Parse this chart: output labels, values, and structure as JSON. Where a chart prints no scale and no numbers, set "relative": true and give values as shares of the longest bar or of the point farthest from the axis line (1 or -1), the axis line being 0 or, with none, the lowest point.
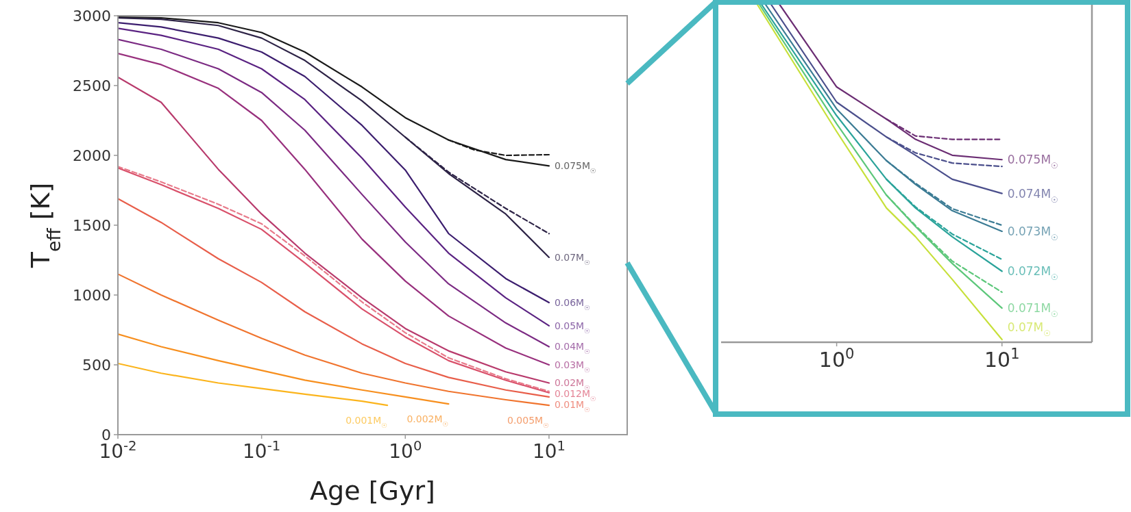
{
  "chart_data": [
    {
      "type": "line",
      "xlabel": "Age [Gyr]",
      "ylabel": "T$_{eff}$ [K]",
      "log": "x",
      "xlim": [
        0.01,
        35
      ],
      "ylim": [
        0,
        3000
      ],
      "xticks": [
        {
          "value": 0.01,
          "label": "10$^{-2}$"
        },
        {
          "value": 0.1,
          "label": "10$^{-1}$"
        },
        {
          "value": 1,
          "label": "10$^{0}$"
        },
        {
          "value": 10,
          "label": "10$^{1}$"
        }
      ],
      "yticks": [
        0,
        500,
        1000,
        1500,
        2000,
        2500,
        3000
      ],
      "series": [
        {
          "name": "0.075M$_{☉}$",
          "color": "#1a1a1a",
          "x": [
            0.01,
            0.02,
            0.05,
            0.1,
            0.2,
            0.5,
            1,
            2,
            5,
            10
          ],
          "values": [
            2990,
            2985,
            2950,
            2880,
            2740,
            2490,
            2270,
            2110,
            1970,
            1925
          ]
        },
        {
          "color": "#1a1a1a",
          "line_style": "dashed",
          "x": [
            2,
            3,
            5,
            10
          ],
          "values": [
            2110,
            2040,
            2000,
            2005
          ]
        },
        {
          "name": "0.07M$_{☉}$",
          "color": "#2d2346",
          "x": [
            0.01,
            0.02,
            0.05,
            0.1,
            0.2,
            0.5,
            1,
            2,
            5,
            10
          ],
          "values": [
            2985,
            2975,
            2930,
            2840,
            2680,
            2390,
            2130,
            1870,
            1580,
            1270
          ]
        },
        {
          "color": "#2d2346",
          "line_style": "dashed",
          "x": [
            1,
            2,
            5,
            10
          ],
          "values": [
            2130,
            1880,
            1620,
            1440
          ]
        },
        {
          "name": "0.06M$_{☉}$",
          "color": "#3b1d6e",
          "x": [
            0.01,
            0.02,
            0.05,
            0.1,
            0.2,
            0.5,
            1,
            2,
            5,
            10
          ],
          "values": [
            2950,
            2920,
            2840,
            2740,
            2565,
            2215,
            1895,
            1440,
            1118,
            946
          ]
        },
        {
          "name": "0.05M$_{☉}$",
          "color": "#5a2282",
          "x": [
            0.01,
            0.02,
            0.05,
            0.1,
            0.2,
            0.5,
            1,
            2,
            5,
            10
          ],
          "values": [
            2910,
            2860,
            2760,
            2620,
            2400,
            1980,
            1630,
            1300,
            980,
            780
          ]
        },
        {
          "name": "0.04M$_{☉}$",
          "color": "#7b2a83",
          "x": [
            0.01,
            0.02,
            0.05,
            0.1,
            0.2,
            0.5,
            1,
            2,
            5,
            10
          ],
          "values": [
            2830,
            2760,
            2620,
            2450,
            2180,
            1720,
            1380,
            1080,
            800,
            630
          ]
        },
        {
          "name": "0.03M$_{☉}$",
          "color": "#98307d",
          "x": [
            0.01,
            0.02,
            0.05,
            0.1,
            0.2,
            0.5,
            1,
            2,
            5,
            10
          ],
          "values": [
            2730,
            2650,
            2480,
            2250,
            1900,
            1400,
            1100,
            850,
            620,
            500
          ]
        },
        {
          "name": "0.02M$_{☉}$",
          "color": "#b83a6c",
          "x": [
            0.01,
            0.02,
            0.05,
            0.1,
            0.2,
            0.5,
            1,
            2,
            5,
            10
          ],
          "values": [
            2560,
            2380,
            1900,
            1580,
            1300,
            980,
            760,
            600,
            450,
            370
          ]
        },
        {
          "name": "0.012M$_{☉}$",
          "color": "#d9506a",
          "x": [
            0.01,
            0.02,
            0.05,
            0.1,
            0.2,
            0.5,
            1,
            2,
            5,
            10
          ],
          "values": [
            1910,
            1790,
            1620,
            1470,
            1230,
            900,
            700,
            530,
            390,
            300
          ]
        },
        {
          "color": "#e87a8a",
          "line_style": "dashed",
          "x": [
            0.01,
            0.02,
            0.05,
            0.1,
            0.2,
            0.5,
            1,
            2,
            5,
            10
          ],
          "values": [
            1920,
            1810,
            1650,
            1510,
            1280,
            950,
            730,
            550,
            400,
            310
          ]
        },
        {
          "name": "0.01M$_{☉}$",
          "color": "#e85e4a",
          "x": [
            0.01,
            0.02,
            0.05,
            0.1,
            0.2,
            0.5,
            1,
            2,
            5,
            10
          ],
          "values": [
            1690,
            1520,
            1260,
            1090,
            880,
            650,
            510,
            410,
            320,
            270
          ]
        },
        {
          "name": "0.005M$_{☉}$",
          "color": "#f0742e",
          "x": [
            0.01,
            0.02,
            0.05,
            0.1,
            0.2,
            0.5,
            1,
            2,
            5,
            10
          ],
          "values": [
            1150,
            1000,
            820,
            690,
            570,
            440,
            370,
            310,
            250,
            210
          ]
        },
        {
          "name": "0.002M$_{☉}$",
          "color": "#f78f1e",
          "x": [
            0.01,
            0.02,
            0.05,
            0.1,
            0.2,
            0.5,
            1,
            2
          ],
          "values": [
            720,
            630,
            530,
            460,
            390,
            320,
            270,
            220
          ]
        },
        {
          "name": "0.001M$_{☉}$",
          "color": "#fbb41c",
          "x": [
            0.01,
            0.02,
            0.05,
            0.1,
            0.2,
            0.5,
            0.75
          ],
          "values": [
            510,
            440,
            370,
            330,
            290,
            240,
            210
          ]
        }
      ]
    },
    {
      "type": "line",
      "relative": true,
      "log": "x",
      "tick_labels": "x",
      "xlim": [
        0.2,
        35
      ],
      "xticks": [
        {
          "value": 1,
          "label": "10$^{0}$"
        },
        {
          "value": 10,
          "label": "10$^{1}$"
        }
      ],
      "series": [
        {
          "name": "0.075M$_{☉}$",
          "color": "#6b2d73",
          "x": [
            0.45,
            1,
            2,
            3,
            5,
            10
          ],
          "values": [
            1,
            0.755,
            0.66,
            0.6,
            0.553,
            0.54
          ]
        },
        {
          "color": "#6b2d73",
          "line_style": "dashed",
          "x": [
            2,
            3,
            5,
            10
          ],
          "values": [
            0.66,
            0.61,
            0.6,
            0.6
          ]
        },
        {
          "name": "0.074M$_{☉}$",
          "color": "#4b4f8c",
          "x": [
            0.4,
            1,
            2,
            3,
            5,
            10
          ],
          "values": [
            1,
            0.71,
            0.607,
            0.553,
            0.482,
            0.44
          ]
        },
        {
          "color": "#4b4f8c",
          "line_style": "dashed",
          "x": [
            2,
            3,
            5,
            10
          ],
          "values": [
            0.607,
            0.56,
            0.53,
            0.52
          ]
        },
        {
          "name": "0.073M$_{☉}$",
          "color": "#3b7b94",
          "x": [
            0.37,
            1,
            2,
            3,
            5,
            10
          ],
          "values": [
            1,
            0.69,
            0.537,
            0.467,
            0.389,
            0.328
          ]
        },
        {
          "color": "#3b7b94",
          "line_style": "dashed",
          "x": [
            2,
            3,
            5,
            10
          ],
          "values": [
            0.537,
            0.47,
            0.395,
            0.346
          ]
        },
        {
          "name": "0.072M$_{☉}$",
          "color": "#2aa39a",
          "x": [
            0.35,
            1,
            2,
            3,
            5,
            10
          ],
          "values": [
            1,
            0.67,
            0.482,
            0.397,
            0.312,
            0.21
          ]
        },
        {
          "color": "#2aa39a",
          "line_style": "dashed",
          "x": [
            2,
            3,
            5,
            10
          ],
          "values": [
            0.482,
            0.4,
            0.32,
            0.245
          ]
        },
        {
          "name": "0.071M$_{☉}$",
          "color": "#5cc77a",
          "x": [
            0.34,
            1,
            2,
            3,
            5,
            10
          ],
          "values": [
            1,
            0.646,
            0.435,
            0.342,
            0.233,
            0.101
          ]
        },
        {
          "color": "#5cc77a",
          "line_style": "dashed",
          "x": [
            2,
            3,
            5,
            10
          ],
          "values": [
            0.435,
            0.345,
            0.24,
            0.148
          ]
        },
        {
          "name": "0.07M$_{☉}$",
          "color": "#c7e03a",
          "x": [
            0.33,
            1,
            2,
            3,
            5,
            10
          ],
          "values": [
            1,
            0.623,
            0.397,
            0.312,
            0.186,
            0.008
          ]
        }
      ]
    }
  ]
}
